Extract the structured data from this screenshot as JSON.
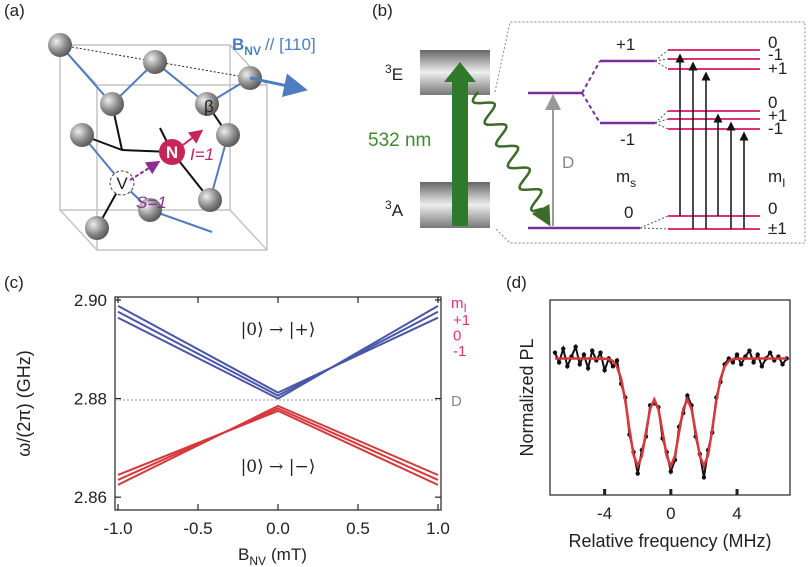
{
  "diagram_a": {
    "panel_label": "(a)",
    "field": {
      "symbol": "B",
      "sub": "NV",
      "direction": "// [110]"
    },
    "angle": "β",
    "nitrogen": "N",
    "vacancy": "V",
    "nuclear_spin": "I=1",
    "electron_spin": "S=1"
  },
  "diagram_b": {
    "panel_label": "(b)",
    "excited_state": {
      "sup": "3",
      "main": "E"
    },
    "ground_state": {
      "sup": "3",
      "main": "A"
    },
    "laser": "532 nm",
    "splitting": "D",
    "ms_title": {
      "main": "m",
      "sub": "s"
    },
    "mI_title": {
      "main": "m",
      "sub": "I"
    },
    "ms_labels": [
      "+1",
      "-1",
      "0"
    ],
    "mI_labels": [
      "0",
      "-1",
      "+1",
      "0",
      "+1",
      "-1",
      "0",
      "±1"
    ]
  },
  "chart_data": [
    {
      "type": "line",
      "panel_label": "(c)",
      "x": [
        -1,
        0,
        1
      ],
      "xlim": [
        -1,
        1
      ],
      "ylim": [
        2.8574,
        2.9006
      ],
      "xticks": [
        {
          "value": -1,
          "label": "-1.0"
        },
        -0.5,
        {
          "value": 0,
          "label": "0.0"
        },
        0.5,
        {
          "value": 1,
          "label": "1.0"
        }
      ],
      "yticks": [
        2.86,
        2.88,
        {
          "value": 2.9,
          "label": "2.90"
        }
      ],
      "xlabel": {
        "main": "B",
        "sub": "NV",
        "unit": "(mT)"
      },
      "ylabel": "ω/(2π) (GHz)",
      "series": [
        {
          "color": "#4a56a6",
          "values": [
            2.8988,
            2.8812,
            2.8964
          ]
        },
        {
          "color": "#4a56a6",
          "values": [
            2.8976,
            2.8806,
            2.8976
          ]
        },
        {
          "color": "#4a56a6",
          "values": [
            2.8964,
            2.88,
            2.8988
          ]
        },
        {
          "color": "#d43a3c",
          "values": [
            2.8645,
            2.8775,
            2.8625
          ]
        },
        {
          "color": "#d43a3c",
          "values": [
            2.8635,
            2.878,
            2.8635
          ]
        },
        {
          "color": "#d43a3c",
          "values": [
            2.8625,
            2.8785,
            2.8645
          ]
        }
      ],
      "annotations": [
        "|0⟩ → |+⟩",
        "|0⟩ → |−⟩"
      ],
      "reference_line": {
        "value": 2.8797,
        "label": "D"
      },
      "legend": {
        "title": {
          "main": "m",
          "sub": "I"
        },
        "entries": [
          "+1",
          "0",
          "-1"
        ],
        "color": "#e0307a"
      }
    },
    {
      "type": "line",
      "panel_label": "(d)",
      "xlim": [
        -7.3,
        7.2
      ],
      "ylim": [
        0,
        1
      ],
      "xticks": [
        -4,
        0,
        4
      ],
      "xlabel": "Relative frequency (MHz)",
      "ylabel": "Normalized PL",
      "series": [
        {
          "color": "#111111",
          "markers": true,
          "x": [
            -7,
            -6.75,
            -6.5,
            -6.25,
            -6,
            -5.75,
            -5.5,
            -5.25,
            -5,
            -4.75,
            -4.5,
            -4.25,
            -4,
            -3.75,
            -3.5,
            -3.25,
            -3,
            -2.75,
            -2.5,
            -2.25,
            -2,
            -1.75,
            -1.5,
            -1.25,
            -1,
            -0.75,
            -0.5,
            -0.25,
            0,
            0.25,
            0.5,
            0.75,
            1,
            1.25,
            1.5,
            1.75,
            2,
            2.25,
            2.5,
            2.75,
            3,
            3.25,
            3.5,
            3.75,
            4,
            4.25,
            4.5,
            4.75,
            5,
            5.25,
            5.5,
            5.75,
            6,
            6.25,
            6.5,
            6.75,
            7
          ],
          "values": [
            0.73,
            0.68,
            0.75,
            0.66,
            0.71,
            0.76,
            0.67,
            0.72,
            0.65,
            0.74,
            0.69,
            0.73,
            0.64,
            0.7,
            0.66,
            0.69,
            0.57,
            0.5,
            0.31,
            0.22,
            0.11,
            0.23,
            0.3,
            0.46,
            0.47,
            0.45,
            0.29,
            0.22,
            0.12,
            0.18,
            0.35,
            0.42,
            0.51,
            0.46,
            0.3,
            0.21,
            0.09,
            0.23,
            0.32,
            0.5,
            0.58,
            0.67,
            0.7,
            0.68,
            0.72,
            0.67,
            0.71,
            0.74,
            0.68,
            0.72,
            0.66,
            0.7,
            0.73,
            0.69,
            0.71,
            0.67,
            0.7
          ]
        },
        {
          "color": "#d9363e",
          "x": [
            -7,
            -6,
            -5,
            -4,
            -3.75,
            -3.5,
            -3.25,
            -3,
            -2.75,
            -2.5,
            -2.25,
            -2,
            -1.75,
            -1.5,
            -1.25,
            -1,
            -0.75,
            -0.5,
            -0.25,
            0,
            0.25,
            0.5,
            0.75,
            1,
            1.25,
            1.5,
            1.75,
            2,
            2.25,
            2.5,
            2.75,
            3,
            3.25,
            3.5,
            3.75,
            4,
            5,
            6,
            7
          ],
          "values": [
            0.7,
            0.7,
            0.7,
            0.699,
            0.697,
            0.687,
            0.658,
            0.595,
            0.483,
            0.336,
            0.204,
            0.149,
            0.2,
            0.323,
            0.441,
            0.49,
            0.441,
            0.323,
            0.2,
            0.148,
            0.2,
            0.323,
            0.441,
            0.49,
            0.441,
            0.323,
            0.2,
            0.149,
            0.204,
            0.336,
            0.483,
            0.595,
            0.658,
            0.687,
            0.697,
            0.699,
            0.7,
            0.7,
            0.7
          ]
        }
      ]
    }
  ]
}
